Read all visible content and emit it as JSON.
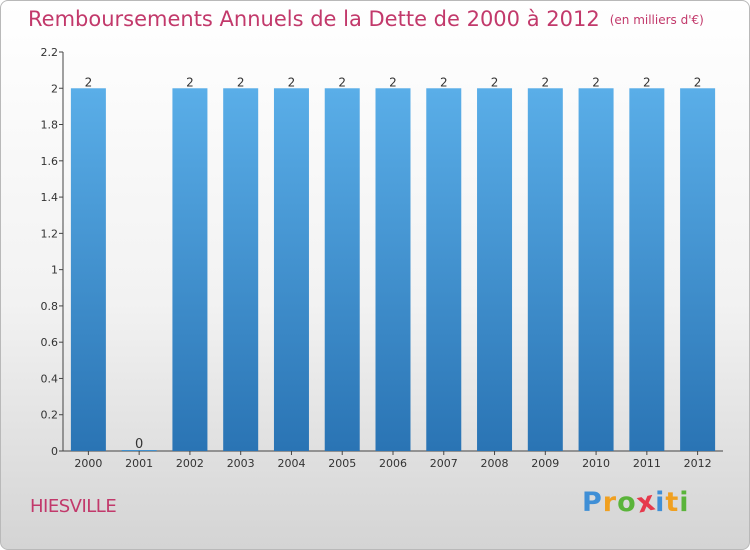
{
  "chart_data": {
    "type": "bar",
    "title": "Remboursements Annuels de la Dette de 2000 à 2012",
    "unit_label": "(en milliers d'€)",
    "categories": [
      "2000",
      "2001",
      "2002",
      "2003",
      "2004",
      "2005",
      "2006",
      "2007",
      "2008",
      "2009",
      "2010",
      "2011",
      "2012"
    ],
    "values": [
      2,
      0,
      2,
      2,
      2,
      2,
      2,
      2,
      2,
      2,
      2,
      2,
      2
    ],
    "data_labels": [
      "2",
      "0",
      "2",
      "2",
      "2",
      "2",
      "2",
      "2",
      "2",
      "2",
      "2",
      "2",
      "2"
    ],
    "ylim": [
      0,
      2.2
    ],
    "yticks": [
      "0",
      "0.2",
      "0.4",
      "0.6",
      "0.8",
      "1",
      "1.2",
      "1.4",
      "1.6",
      "1.8",
      "2",
      "2.2"
    ],
    "xlabel": "",
    "ylabel": "",
    "grid": false,
    "bar_color_top": "#5aaee8",
    "bar_color_bottom": "#2a74b4"
  },
  "commune": "HIESVILLE",
  "brand": {
    "letters": [
      "P",
      "r",
      "o",
      "x",
      "i",
      "t",
      "i"
    ],
    "colors": [
      "#3f8fd6",
      "#f0a020",
      "#5ab43a",
      "#e6394c",
      "#3f8fd6",
      "#f0a020",
      "#5ab43a"
    ]
  }
}
